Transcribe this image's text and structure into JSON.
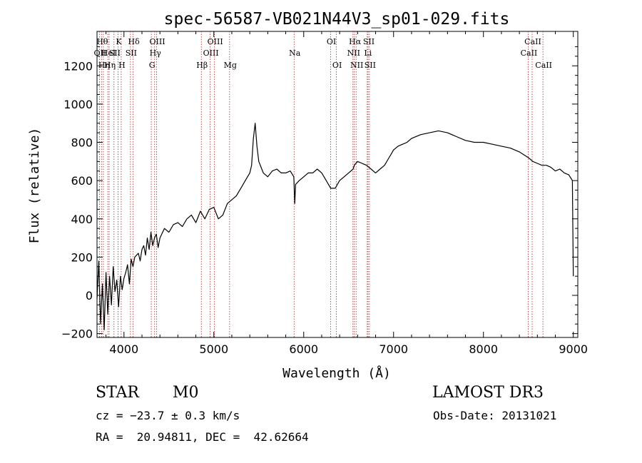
{
  "chart_data": {
    "type": "line",
    "title": "spec-56587-VB021N44V3_sp01-029.fits",
    "xlabel": "Wavelength (Å)",
    "ylabel": "Flux (relative)",
    "xlim": [
      3700,
      9050
    ],
    "ylim": [
      -220,
      1380
    ],
    "xticks": [
      4000,
      5000,
      6000,
      7000,
      8000,
      9000
    ],
    "yticks": [
      -200,
      0,
      200,
      400,
      600,
      800,
      1000,
      1200
    ],
    "xtick_labels": [
      "4000",
      "5000",
      "6000",
      "7000",
      "8000",
      "9000"
    ],
    "ytick_labels": [
      "−200",
      "0",
      "200",
      "400",
      "600",
      "800",
      "1000",
      "1200"
    ],
    "line_color": "#000000",
    "marker_color": "#a52a2a",
    "series": [
      {
        "x": [
          3700,
          3720,
          3740,
          3760,
          3780,
          3800,
          3820,
          3840,
          3860,
          3880,
          3900,
          3920,
          3940,
          3960,
          3980,
          4000,
          4020,
          4040,
          4060,
          4080,
          4100,
          4120,
          4140,
          4160,
          4180,
          4200,
          4220,
          4240,
          4260,
          4280,
          4300,
          4320,
          4340,
          4360,
          4380,
          4400,
          4450,
          4500,
          4550,
          4600,
          4650,
          4700,
          4750,
          4800,
          4850,
          4900,
          4950,
          5000,
          5050,
          5100,
          5150,
          5200,
          5250,
          5300,
          5350,
          5400,
          5420,
          5440,
          5460,
          5480,
          5500,
          5550,
          5600,
          5650,
          5700,
          5750,
          5800,
          5850,
          5890,
          5900,
          5910,
          5950,
          6000,
          6050,
          6100,
          6150,
          6200,
          6250,
          6300,
          6350,
          6400,
          6450,
          6500,
          6550,
          6563,
          6580,
          6600,
          6650,
          6700,
          6750,
          6800,
          6850,
          6900,
          6950,
          7000,
          7050,
          7100,
          7150,
          7200,
          7300,
          7400,
          7500,
          7600,
          7700,
          7800,
          7900,
          8000,
          8100,
          8200,
          8300,
          8400,
          8500,
          8550,
          8600,
          8650,
          8700,
          8750,
          8800,
          8850,
          8900,
          8950,
          8990,
          9000
        ],
        "y": [
          -20,
          180,
          -150,
          60,
          -180,
          120,
          -100,
          100,
          -50,
          150,
          20,
          80,
          -60,
          100,
          30,
          90,
          120,
          160,
          60,
          190,
          150,
          200,
          210,
          220,
          180,
          240,
          260,
          210,
          300,
          240,
          330,
          260,
          300,
          320,
          250,
          300,
          350,
          330,
          370,
          380,
          360,
          400,
          420,
          380,
          440,
          400,
          450,
          460,
          400,
          420,
          480,
          500,
          520,
          560,
          600,
          640,
          680,
          820,
          900,
          780,
          700,
          640,
          620,
          650,
          660,
          640,
          640,
          650,
          620,
          480,
          580,
          600,
          620,
          640,
          640,
          660,
          640,
          600,
          560,
          560,
          600,
          620,
          640,
          660,
          680,
          690,
          700,
          690,
          680,
          660,
          640,
          660,
          680,
          720,
          760,
          780,
          790,
          800,
          820,
          840,
          850,
          860,
          850,
          830,
          810,
          800,
          800,
          790,
          780,
          770,
          750,
          720,
          700,
          690,
          680,
          680,
          670,
          650,
          660,
          640,
          630,
          600,
          100
        ]
      }
    ],
    "line_markers": [
      {
        "x": 3750,
        "label": "Hθ",
        "row": 1
      },
      {
        "x": 3771,
        "label": "Hη",
        "row": 3
      },
      {
        "x": 3727,
        "label": "OII",
        "row": 2
      },
      {
        "x": 3820,
        "label": "HeI",
        "row": 2
      },
      {
        "x": 3835,
        "label": "Hη",
        "row": 3
      },
      {
        "x": 3889,
        "label": "SII",
        "row": 2
      },
      {
        "x": 3934,
        "label": "K",
        "row": 1
      },
      {
        "x": 3969,
        "label": "H",
        "row": 3
      },
      {
        "x": 4072,
        "label": "SII",
        "row": 2
      },
      {
        "x": 4102,
        "label": "Hδ",
        "row": 1
      },
      {
        "x": 4304,
        "label": "G",
        "row": 3
      },
      {
        "x": 4341,
        "label": "Hγ",
        "row": 2
      },
      {
        "x": 4363,
        "label": "OIII",
        "row": 1
      },
      {
        "x": 4861,
        "label": "Hβ",
        "row": 3
      },
      {
        "x": 4959,
        "label": "OIII",
        "row": 2
      },
      {
        "x": 5007,
        "label": "OIII",
        "row": 1
      },
      {
        "x": 5175,
        "label": "Mg",
        "row": 3
      },
      {
        "x": 5893,
        "label": "Na",
        "row": 2
      },
      {
        "x": 6300,
        "label": "OI",
        "row": 1
      },
      {
        "x": 6364,
        "label": "OI",
        "row": 3
      },
      {
        "x": 6548,
        "label": "NII",
        "row": 2
      },
      {
        "x": 6563,
        "label": "Hα",
        "row": 1
      },
      {
        "x": 6583,
        "label": "NII",
        "row": 3
      },
      {
        "x": 6707,
        "label": "Li",
        "row": 2
      },
      {
        "x": 6716,
        "label": "SII",
        "row": 1
      },
      {
        "x": 6731,
        "label": "SII",
        "row": 3
      },
      {
        "x": 8498,
        "label": "CaII",
        "row": 2
      },
      {
        "x": 8542,
        "label": "CaII",
        "row": 1
      },
      {
        "x": 8662,
        "label": "CaII",
        "row": 3
      }
    ]
  },
  "info": {
    "class_label": "STAR",
    "subclass_label": "M0",
    "survey_label": "LAMOST DR3",
    "redshift_text": "cz = −23.7 ± 0.3 km/s",
    "obs_date_text": "Obs-Date: 20131021",
    "coords_text": "RA =  20.94811, DEC =  42.62664"
  }
}
